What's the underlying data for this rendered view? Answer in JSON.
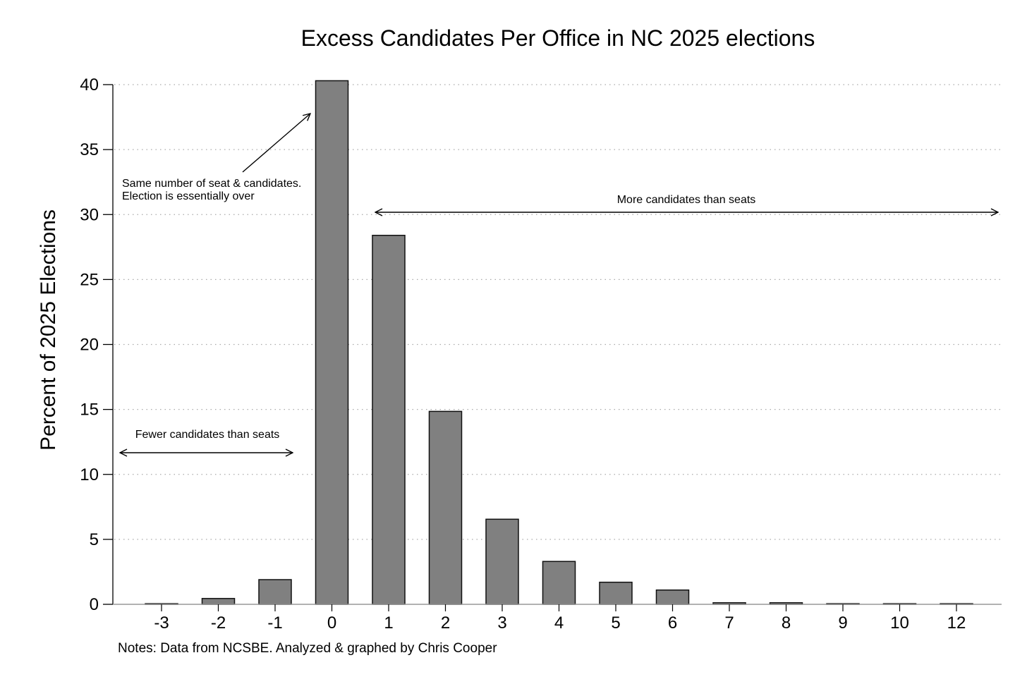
{
  "chart_data": {
    "type": "bar",
    "title": "Excess Candidates Per Office in NC 2025 elections",
    "xlabel": "",
    "ylabel": "Percent of 2025 Elections",
    "categories": [
      "-3",
      "-2",
      "-1",
      "0",
      "1",
      "2",
      "3",
      "4",
      "5",
      "6",
      "7",
      "8",
      "9",
      "10",
      "12"
    ],
    "values": [
      0.05,
      0.45,
      1.9,
      40.3,
      28.4,
      14.85,
      6.55,
      3.3,
      1.7,
      1.1,
      0.12,
      0.12,
      0.05,
      0.05,
      0.05
    ],
    "ylim": [
      0,
      40
    ],
    "yticks": [
      0,
      5,
      10,
      15,
      20,
      25,
      30,
      35,
      40
    ],
    "grid": "horizontal dotted",
    "bar_color": "#808080",
    "annotations": {
      "same_line1": "Same number of seat & candidates.",
      "same_line2": "Election is essentially over",
      "more": "More candidates than seats",
      "fewer": "Fewer candidates than seats"
    },
    "notes": "Notes: Data from NCSBE. Analyzed & graphed by Chris Cooper"
  }
}
